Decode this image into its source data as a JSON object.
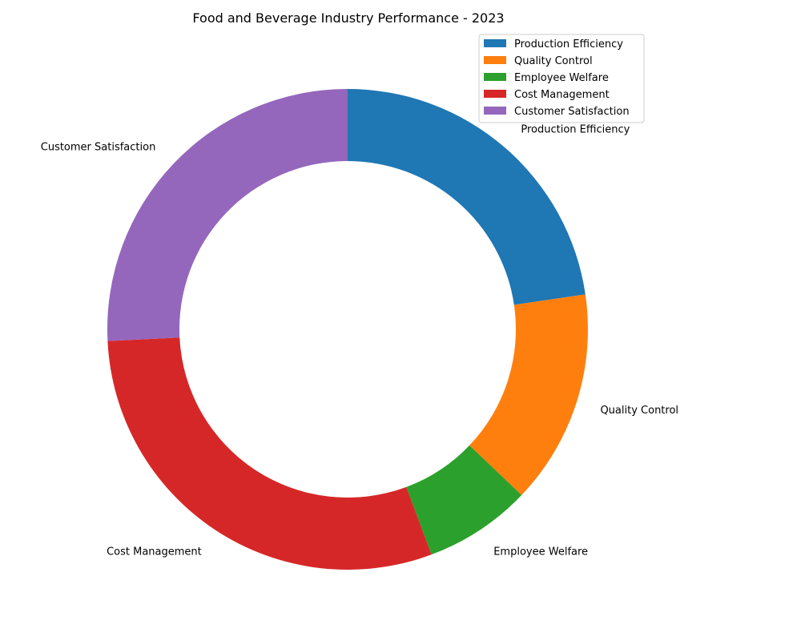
{
  "chart_data": {
    "type": "pie",
    "title": "Food and Beverage Industry Performance - 2023",
    "categories": [
      "Production Efficiency",
      "Quality Control",
      "Employee Welfare",
      "Cost Management",
      "Customer Satisfaction"
    ],
    "values": [
      22,
      14,
      7,
      29,
      25
    ],
    "colors": [
      "#1f77b4",
      "#ff7f0e",
      "#2ca02c",
      "#d62728",
      "#9467bd"
    ],
    "donut": true,
    "legend_position": "top-right"
  }
}
